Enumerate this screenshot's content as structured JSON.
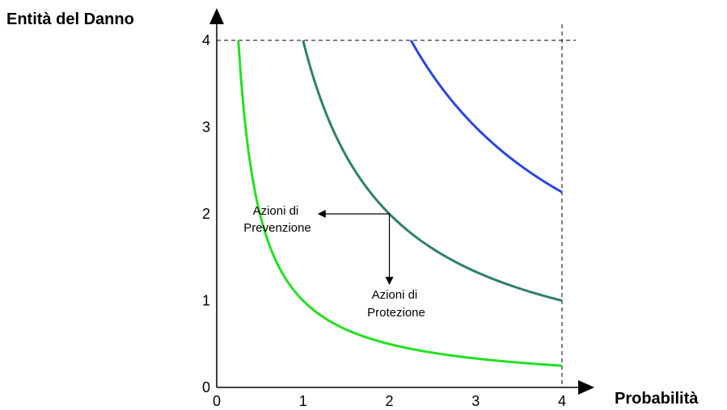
{
  "chart_data": {
    "type": "line",
    "ylabel": "Entità del Danno",
    "xlabel": "Probabilità",
    "xlim": [
      0,
      4
    ],
    "ylim": [
      0,
      4
    ],
    "x_ticks": [
      "0",
      "1",
      "2",
      "3",
      "4"
    ],
    "y_ticks": [
      "0",
      "1",
      "2",
      "3",
      "4"
    ],
    "grid": false,
    "series": [
      {
        "k": 1,
        "color": "#22e022",
        "x_start": 0.25,
        "x_end": 4
      },
      {
        "k": 4,
        "color": "#2e7f6c",
        "x_start": 1,
        "x_end": 4
      },
      {
        "k": 9,
        "color": "#2a46e0",
        "x_start": 2.25,
        "x_end": 4
      }
    ],
    "reference_lines": [
      {
        "orientation": "horizontal",
        "value": 4,
        "style": "dashed"
      },
      {
        "orientation": "vertical",
        "value": 4,
        "style": "dashed"
      }
    ],
    "arrows": [
      {
        "name": "prevention-arrow",
        "from": [
          2,
          2
        ],
        "to": [
          1,
          2
        ]
      },
      {
        "name": "protection-arrow",
        "from": [
          2,
          2
        ],
        "to": [
          2,
          1.2
        ]
      }
    ],
    "annotations": [
      {
        "name": "prevention-label",
        "lines": [
          "Azioni di",
          "Prevenzione"
        ]
      },
      {
        "name": "protection-label",
        "lines": [
          "Azioni di",
          "Protezione"
        ]
      }
    ]
  }
}
